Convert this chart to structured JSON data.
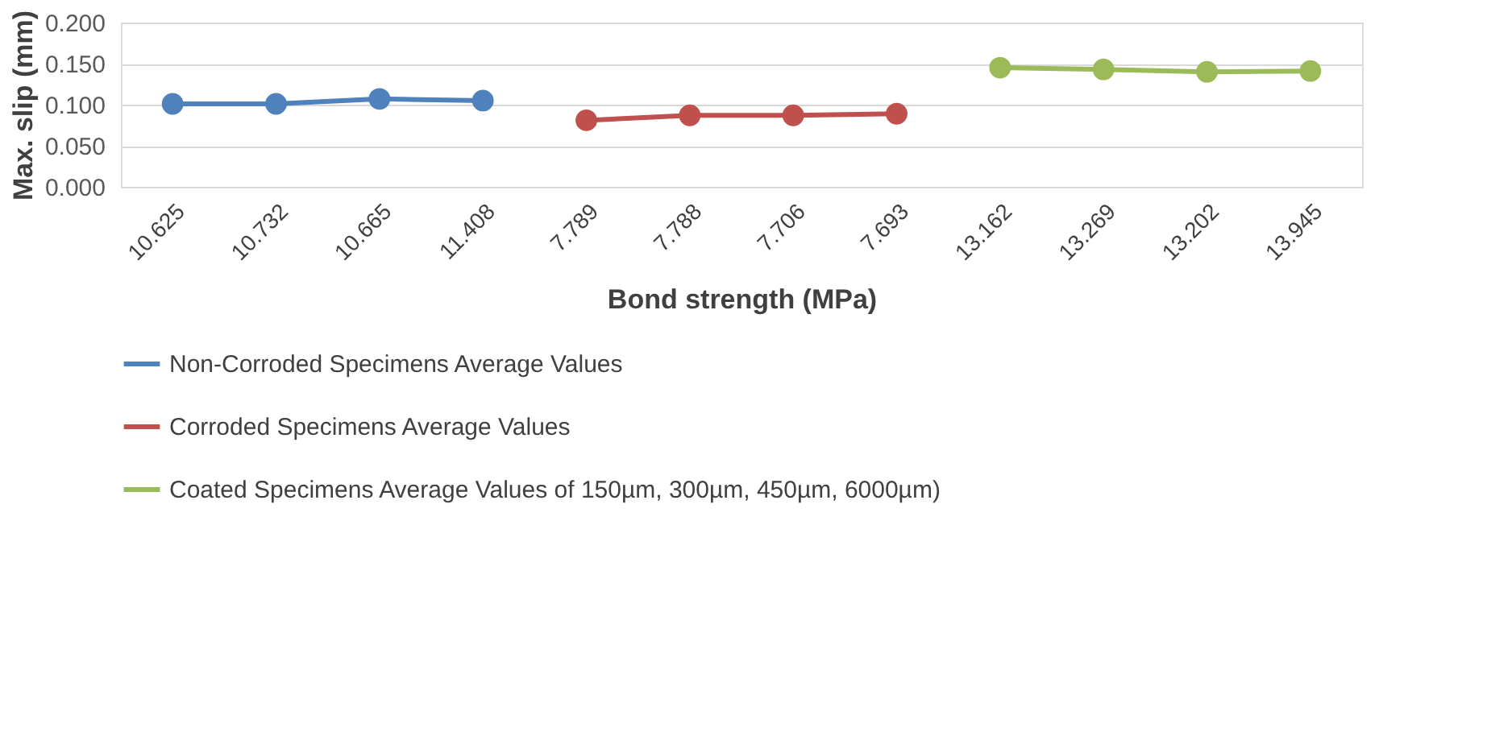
{
  "chart_data": {
    "type": "line",
    "xlabel": "Bond strength (MPa)",
    "ylabel": "Max. slip (mm)",
    "categories": [
      "10.625",
      "10.732",
      "10.665",
      "11.408",
      "7.789",
      "7.788",
      "7.706",
      "7.693",
      "13.162",
      "13.269",
      "13.202",
      "13.945"
    ],
    "series": [
      {
        "name": "Non-Corroded Specimens Average Values",
        "color": "#4f81bd",
        "values": [
          0.101,
          0.101,
          0.107,
          0.105,
          null,
          null,
          null,
          null,
          null,
          null,
          null,
          null
        ]
      },
      {
        "name": "Corroded Specimens Average Values",
        "color": "#c0504d",
        "values": [
          null,
          null,
          null,
          null,
          0.081,
          0.087,
          0.087,
          0.089,
          null,
          null,
          null,
          null
        ]
      },
      {
        "name": "Coated Specimens Average Values of 150µm, 300µm, 450µm, 6000µm)",
        "color": "#9bbb59",
        "values": [
          null,
          null,
          null,
          null,
          null,
          null,
          null,
          null,
          0.145,
          0.143,
          0.14,
          0.141
        ]
      }
    ],
    "ylim": [
      0,
      0.2
    ],
    "yticks": [
      {
        "value": 0,
        "label": "0.000"
      },
      {
        "value": 0.05,
        "label": "0.050"
      },
      {
        "value": 0.1,
        "label": "0.100"
      },
      {
        "value": 0.15,
        "label": "0.150"
      },
      {
        "value": 0.2,
        "label": "0.200"
      }
    ],
    "grid": "y",
    "legend": "bottom",
    "marker": "circle",
    "line_style": "solid"
  }
}
